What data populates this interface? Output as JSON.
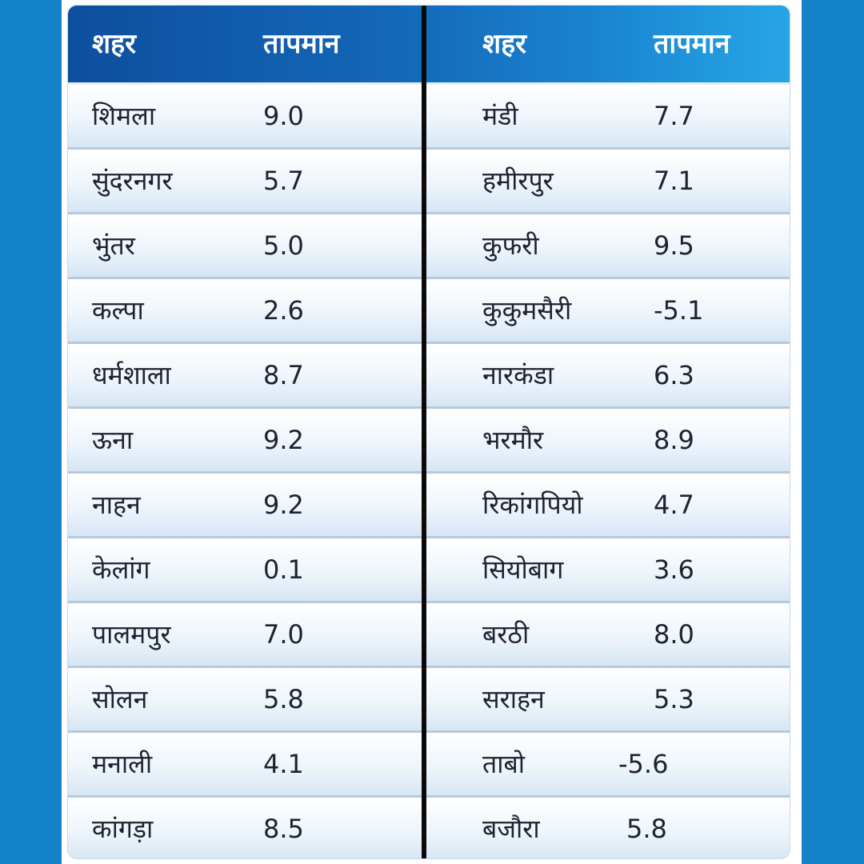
{
  "headers": {
    "left_city": "शहर",
    "left_temp": "तापमान",
    "right_city": "शहर",
    "right_temp": "तापमान"
  },
  "left_rows": [
    {
      "city": "शिमला",
      "temp": "9.0"
    },
    {
      "city": "सुंदरनगर",
      "temp": "5.7"
    },
    {
      "city": "भुंतर",
      "temp": "5.0"
    },
    {
      "city": "कल्पा",
      "temp": "2.6"
    },
    {
      "city": "धर्मशाला",
      "temp": "8.7"
    },
    {
      "city": "ऊना",
      "temp": "9.2"
    },
    {
      "city": "नाहन",
      "temp": "9.2"
    },
    {
      "city": "केलांग",
      "temp": "0.1"
    },
    {
      "city": "पालमपुर",
      "temp": "7.0"
    },
    {
      "city": "सोलन",
      "temp": "5.8"
    },
    {
      "city": "मनाली",
      "temp": "4.1"
    },
    {
      "city": "कांगड़ा",
      "temp": "8.5"
    }
  ],
  "right_rows": [
    {
      "city": "मंडी",
      "temp": "7.7"
    },
    {
      "city": "हमीरपुर",
      "temp": "7.1"
    },
    {
      "city": "कुफरी",
      "temp": "9.5"
    },
    {
      "city": "कुकुमसैरी",
      "temp": "-5.1"
    },
    {
      "city": "नारकंडा",
      "temp": "6.3"
    },
    {
      "city": "भरमौर",
      "temp": "8.9"
    },
    {
      "city": "रिकांगपियो",
      "temp": "4.7"
    },
    {
      "city": "सियोबाग",
      "temp": "3.6"
    },
    {
      "city": "बरठी",
      "temp": "8.0"
    },
    {
      "city": "सराहन",
      "temp": "5.3"
    },
    {
      "city": "ताबो",
      "temp": "-5.6"
    },
    {
      "city": "बजौरा",
      "temp": "5.8"
    }
  ]
}
